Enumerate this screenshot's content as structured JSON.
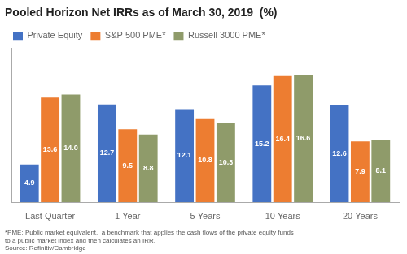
{
  "chart_data": {
    "type": "bar",
    "title": "Pooled Horizon Net IRRs as of March 30, 2019  (%)",
    "categories": [
      "Last Quarter",
      "1 Year",
      "5 Years",
      "10 Years",
      "20 Years"
    ],
    "series": [
      {
        "name": "Private Equity",
        "color": "#4472C4",
        "values": [
          4.9,
          12.7,
          12.1,
          15.2,
          12.6
        ]
      },
      {
        "name": "S&P 500 PME*",
        "color": "#ED7D31",
        "values": [
          13.6,
          9.5,
          10.8,
          16.4,
          7.9
        ]
      },
      {
        "name": "Russell 3000 PME*",
        "color": "#8F9B6A",
        "values": [
          14.0,
          8.8,
          10.3,
          16.6,
          8.1
        ],
        "value_labels": [
          "14.0",
          "8.8",
          "10.3",
          "16.6",
          "8.1"
        ]
      }
    ],
    "ylim": [
      0,
      20
    ],
    "grid": false,
    "legend": "top-left",
    "data_labels": true,
    "tick_labels": "x",
    "annotations": [
      "*PME: Public market equivalent,  a benchmark that applies the cash flows of the private equity funds\nto a public market index and then calculates an IRR.\nSource: Refinitiv/Cambridge"
    ]
  }
}
